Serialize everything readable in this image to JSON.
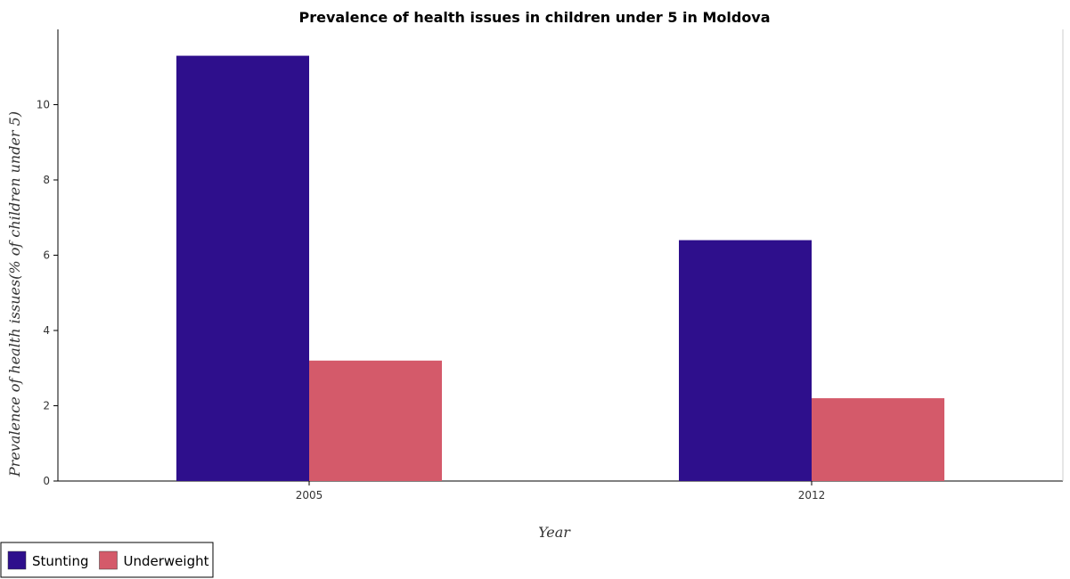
{
  "chart_data": {
    "type": "bar",
    "title": "Prevalence of health issues in children under 5 in Moldova",
    "xlabel": "Year",
    "ylabel": "Prevalence of health issues(% of children under 5)",
    "categories": [
      "2005",
      "2012"
    ],
    "series": [
      {
        "name": "Stunting",
        "values": [
          11.3,
          6.4
        ],
        "color": "#2e0f8c"
      },
      {
        "name": "Underweight",
        "values": [
          3.2,
          2.2
        ],
        "color": "#d45a6a"
      }
    ],
    "ylim": [
      0,
      12
    ],
    "yticks": [
      0,
      2,
      4,
      6,
      8,
      10
    ],
    "grid": false,
    "legend_position": "bottom-left"
  }
}
